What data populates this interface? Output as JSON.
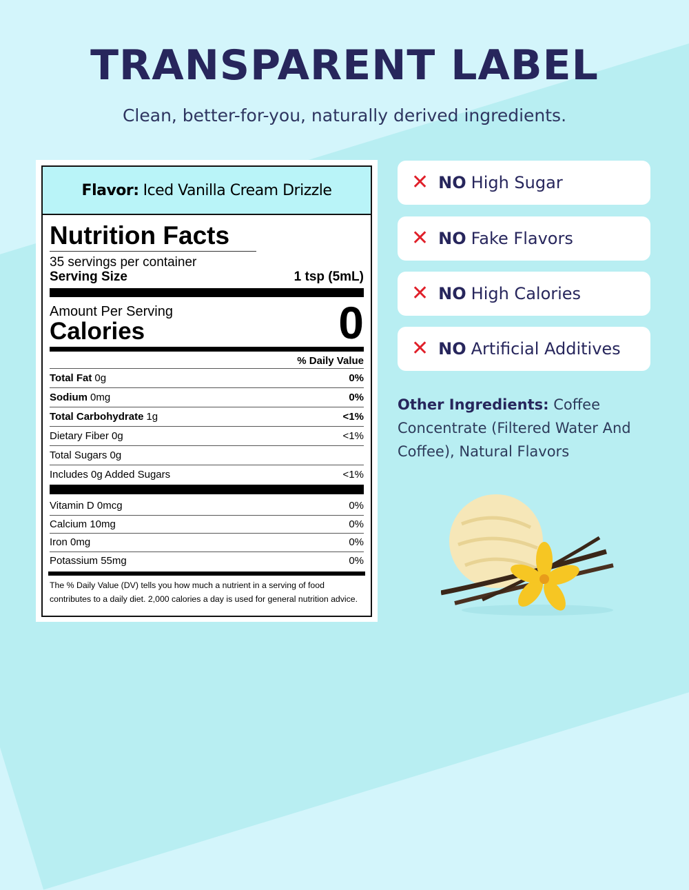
{
  "header": {
    "title": "TRANSPARENT LABEL",
    "subtitle": "Clean, better-for-you, naturally derived ingredients."
  },
  "label": {
    "flavor_label": "Flavor:",
    "flavor_value": "Iced Vanilla Cream Drizzle",
    "title": "Nutrition Facts",
    "servings": "35 servings per container",
    "serving_size_label": "Serving Size",
    "serving_size_value": "1 tsp (5mL)",
    "amount_per_serving": "Amount Per Serving",
    "calories_label": "Calories",
    "calories_value": "0",
    "daily_value_header": "% Daily Value",
    "nutrients": [
      {
        "name": "Total Fat",
        "amount": "0g",
        "dv": "0%"
      },
      {
        "name": "Sodium",
        "amount": "0mg",
        "dv": "0%"
      },
      {
        "name": "Total Carbohydrate",
        "amount": "1g",
        "dv": "<1%"
      },
      {
        "text": "Dietary Fiber 0g",
        "dv": "<1%"
      },
      {
        "text": "Total Sugars 0g",
        "dv": ""
      },
      {
        "text": "Includes 0g Added Sugars",
        "dv": "<1%"
      }
    ],
    "vitamins": [
      {
        "text": "Vitamin D 0mcg",
        "dv": "0%"
      },
      {
        "text": "Calcium 10mg",
        "dv": "0%"
      },
      {
        "text": "Iron 0mg",
        "dv": "0%"
      },
      {
        "text": "Potassium 55mg",
        "dv": "0%"
      }
    ],
    "footnote": "The % Daily Value (DV) tells you how much a nutrient in a serving of food contributes to a daily diet. 2,000 calories a day is used for general nutrition advice."
  },
  "claims": [
    {
      "prefix": "NO",
      "text": "High Sugar"
    },
    {
      "prefix": "NO",
      "text": "Fake Flavors"
    },
    {
      "prefix": "NO",
      "text": "High Calories"
    },
    {
      "prefix": "NO",
      "text": "Artificial Additives"
    }
  ],
  "claim_icon": "x-mark-icon",
  "claim_icon_color": "#e0202a",
  "other_ingredients": {
    "label": "Other Ingredients:",
    "text": "Coffee Concentrate (Filtered Water And Coffee), Natural Flavors"
  },
  "colors": {
    "title": "#27265c",
    "flavor_bg": "#b9f4f8",
    "background": "#d3f5fb"
  }
}
